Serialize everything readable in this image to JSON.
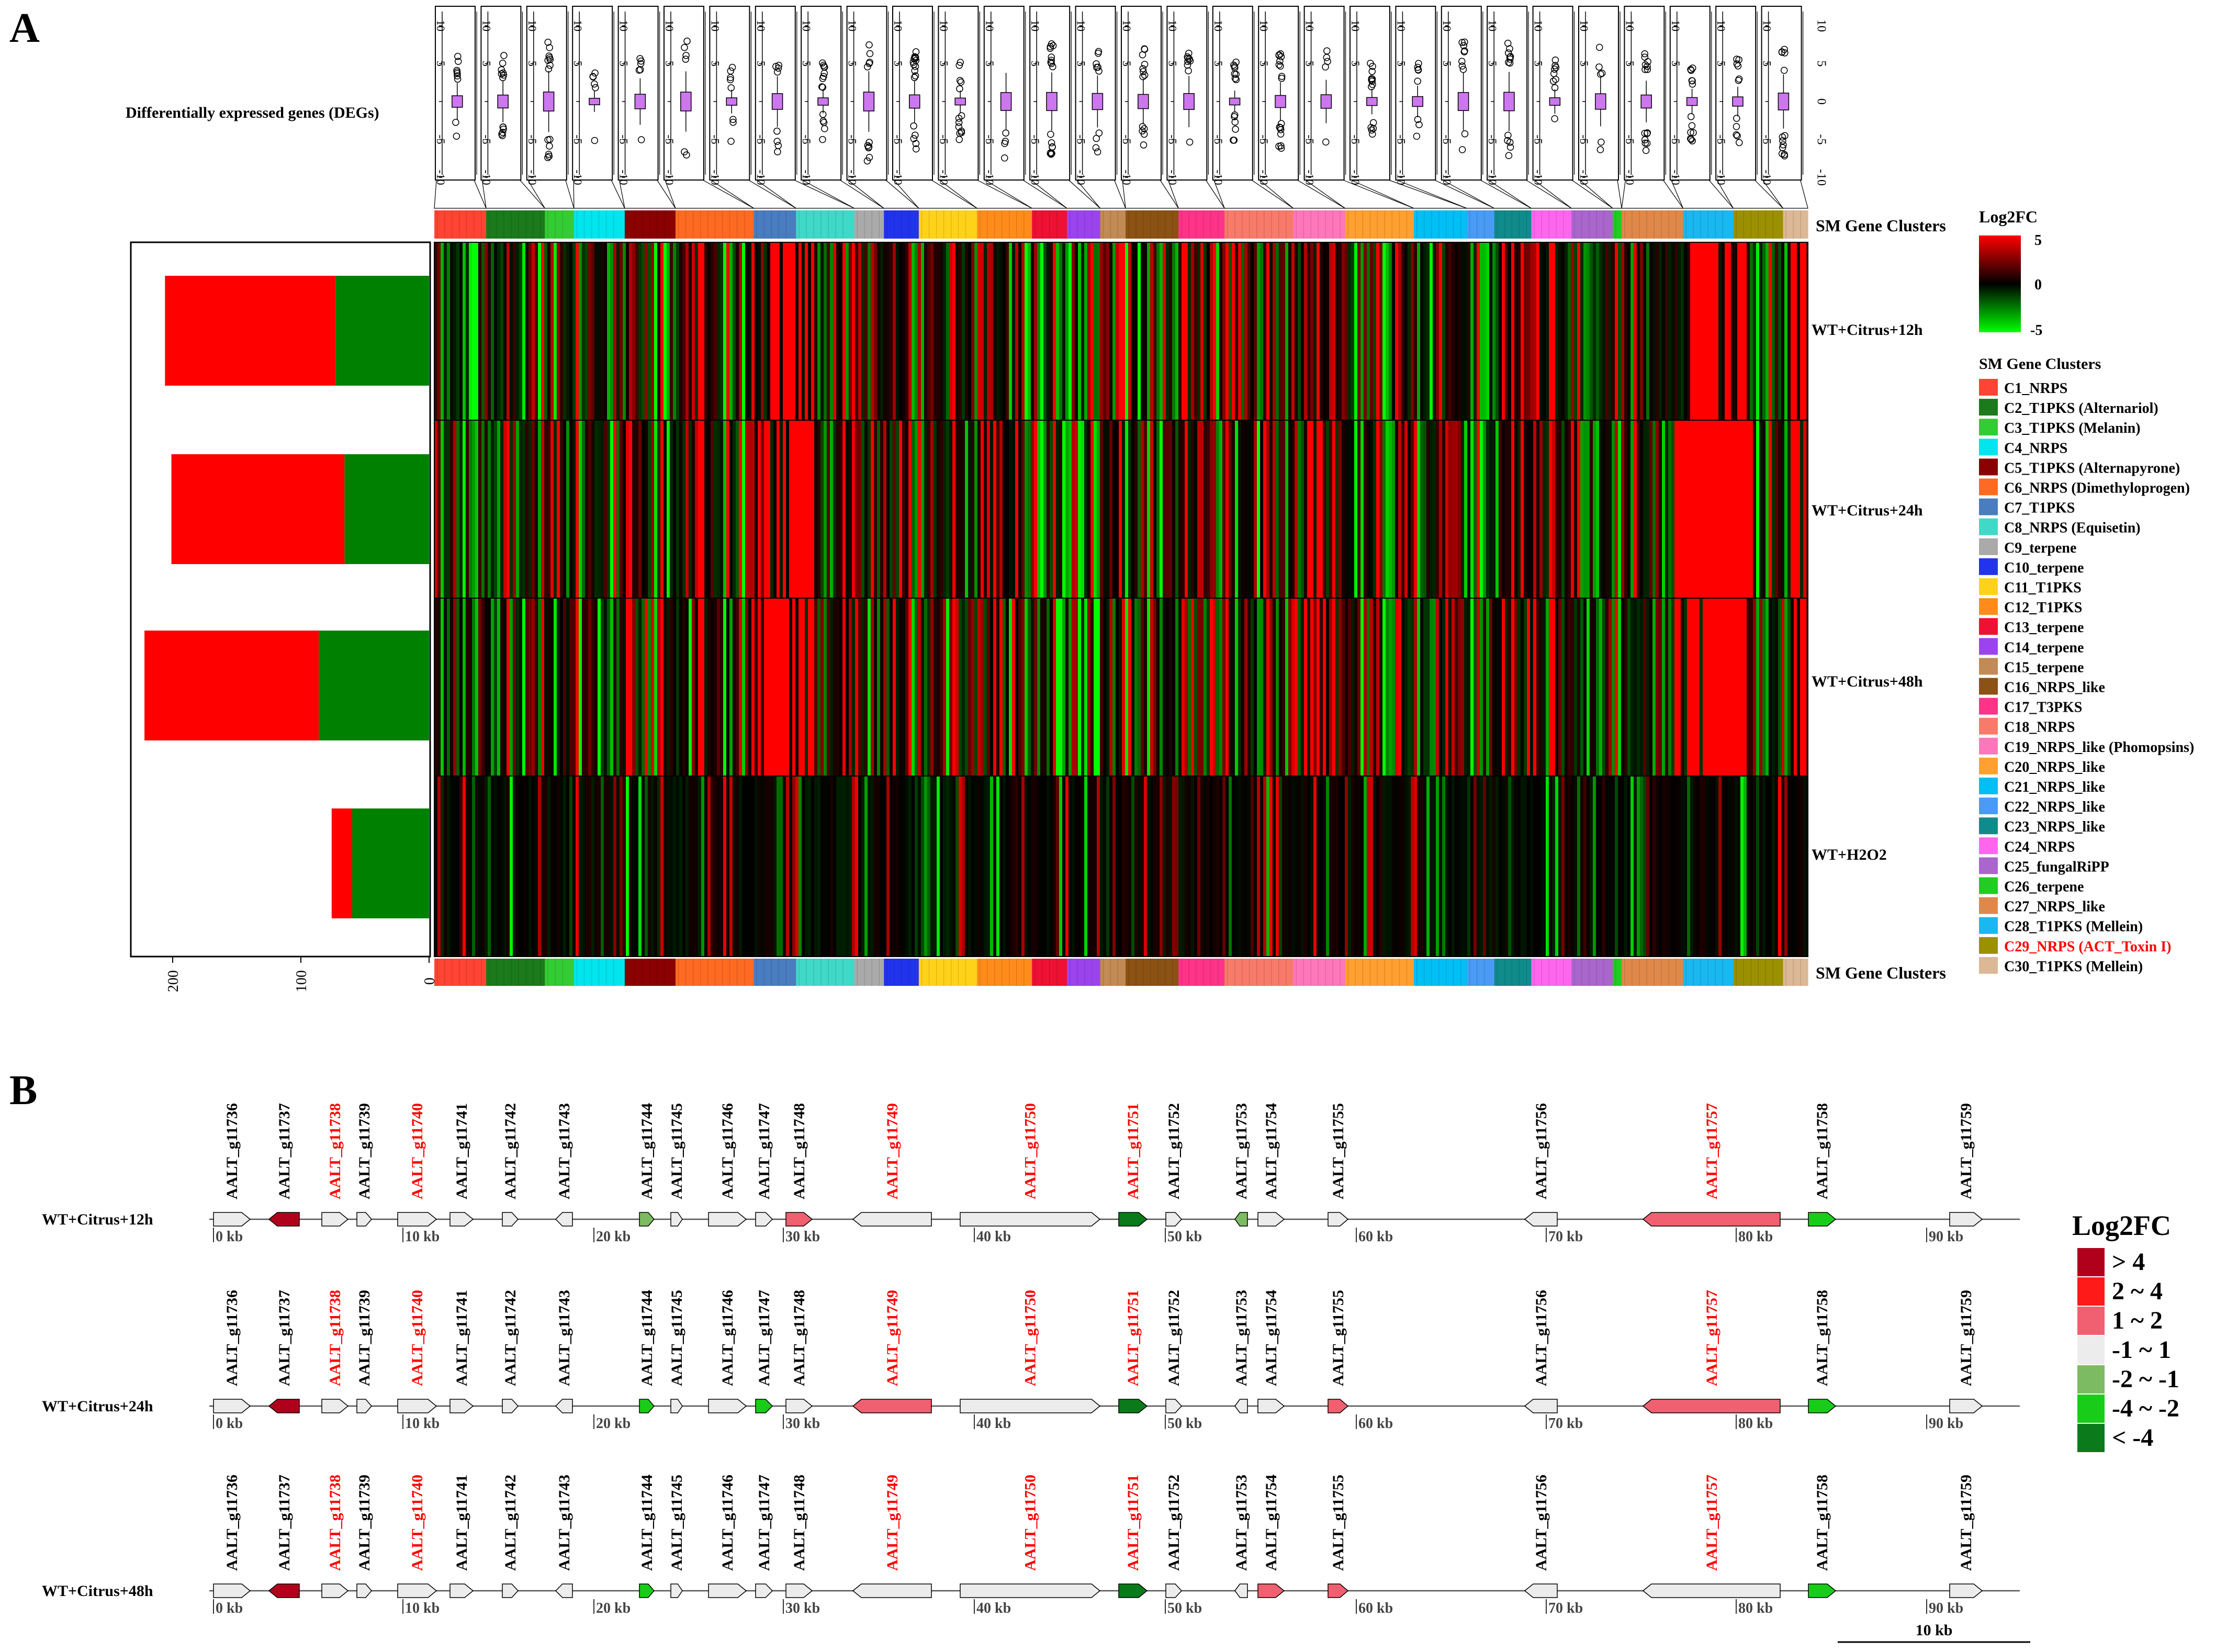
{
  "panelA": {
    "letter": "A",
    "deg_label": "Differentially expressed genes (DEGs)",
    "sm_label": "SM Gene Clusters",
    "legend_title": "Log2FC",
    "scale_ticks": [
      "5",
      "0",
      "-5"
    ],
    "legend_sm_title": "SM Gene Clusters",
    "boxplot_ticks": [
      "10",
      "5",
      "0",
      "-5",
      "-10"
    ],
    "bar_axis_ticks": [
      "200",
      "100",
      "0"
    ],
    "colors": {
      "up": "#ff0000",
      "down": "#008000",
      "black": "#000000"
    },
    "conditions": [
      {
        "label": "WT+Citrus+12h",
        "up": 133,
        "down": 73
      },
      {
        "label": "WT+Citrus+24h",
        "up": 135,
        "down": 66
      },
      {
        "label": "WT+Citrus+48h",
        "up": 136,
        "down": 86
      },
      {
        "label": "WT+H2O2",
        "up": 16,
        "down": 60
      }
    ],
    "clusters": [
      {
        "name": "C1_NRPS",
        "color": "#ff4433",
        "highlight": false
      },
      {
        "name": "C2_T1PKS (Alternariol)",
        "color": "#1b7a1b",
        "highlight": false
      },
      {
        "name": "C3_T1PKS (Melanin)",
        "color": "#33cc33",
        "highlight": false
      },
      {
        "name": "C4_NRPS",
        "color": "#00e5ee",
        "highlight": false
      },
      {
        "name": "C5_T1PKS (Alternapyrone)",
        "color": "#8b0000",
        "highlight": false
      },
      {
        "name": "C6_NRPS (Dimethyloprogen)",
        "color": "#ff6a22",
        "highlight": false
      },
      {
        "name": "C7_T1PKS",
        "color": "#4a7cc0",
        "highlight": false
      },
      {
        "name": "C8_NRPS (Equisetin)",
        "color": "#40d9c8",
        "highlight": false
      },
      {
        "name": "C9_terpene",
        "color": "#aaaaaa",
        "highlight": false
      },
      {
        "name": "C10_terpene",
        "color": "#2233ee",
        "highlight": false
      },
      {
        "name": "C11_T1PKS",
        "color": "#ffd21a",
        "highlight": false
      },
      {
        "name": "C12_T1PKS",
        "color": "#ff8c1a",
        "highlight": false
      },
      {
        "name": "C13_terpene",
        "color": "#ee1133",
        "highlight": false
      },
      {
        "name": "C14_terpene",
        "color": "#9b44ee",
        "highlight": false
      },
      {
        "name": "C15_terpene",
        "color": "#c28a55",
        "highlight": false
      },
      {
        "name": "C16_NRPS_like",
        "color": "#8b5213",
        "highlight": false
      },
      {
        "name": "C17_T3PKS",
        "color": "#ff3388",
        "highlight": false
      },
      {
        "name": "C18_NRPS",
        "color": "#f87a6a",
        "highlight": false
      },
      {
        "name": "C19_NRPS_like (Phomopsins)",
        "color": "#ff77bb",
        "highlight": false
      },
      {
        "name": "C20_NRPS_like",
        "color": "#ffa030",
        "highlight": false
      },
      {
        "name": "C21_NRPS_like",
        "color": "#00bff5",
        "highlight": false
      },
      {
        "name": "C22_NRPS_like",
        "color": "#4a9bf5",
        "highlight": false
      },
      {
        "name": "C23_NRPS_like",
        "color": "#108b8b",
        "highlight": false
      },
      {
        "name": "C24_NRPS",
        "color": "#ff66ee",
        "highlight": false
      },
      {
        "name": "C25_fungalRiPP",
        "color": "#aa66cc",
        "highlight": false
      },
      {
        "name": "C26_terpene",
        "color": "#22cc22",
        "highlight": false
      },
      {
        "name": "C27_NRPS_like",
        "color": "#e0884a",
        "highlight": false
      },
      {
        "name": "C28_T1PKS (Mellein)",
        "color": "#1ab8f0",
        "highlight": false
      },
      {
        "name": "C29_NRPS (ACT_Toxin I)",
        "color": "#9b9000",
        "highlight": true
      },
      {
        "name": "C30_T1PKS (Mellein)",
        "color": "#dcb896",
        "highlight": false
      }
    ]
  },
  "panelB": {
    "letter": "B",
    "legend_title": "Log2FC",
    "scale_label": "10 kb",
    "kb_ticks": [
      "0 kb",
      "10 kb",
      "20 kb",
      "30 kb",
      "40 kb",
      "50 kb",
      "60 kb",
      "70 kb",
      "80 kb",
      "90 kb"
    ],
    "legend": [
      {
        "label": "> 4",
        "color": "#b0001c"
      },
      {
        "label": "2 ~ 4",
        "color": "#ff1a1a"
      },
      {
        "label": "1 ~ 2",
        "color": "#f06070"
      },
      {
        "label": "-1 ~ 1",
        "color": "#ececec"
      },
      {
        "label": "-2 ~ -1",
        "color": "#7dbb63"
      },
      {
        "label": "-4 ~ -2",
        "color": "#19cc19"
      },
      {
        "label": "< -4",
        "color": "#0a7a1a"
      }
    ],
    "genes": [
      {
        "id": "AALT_g11736",
        "red": false
      },
      {
        "id": "AALT_g11737",
        "red": false
      },
      {
        "id": "AALT_g11738",
        "red": true
      },
      {
        "id": "AALT_g11739",
        "red": false
      },
      {
        "id": "AALT_g11740",
        "red": true
      },
      {
        "id": "AALT_g11741",
        "red": false
      },
      {
        "id": "AALT_g11742",
        "red": false
      },
      {
        "id": "AALT_g11743",
        "red": false
      },
      {
        "id": "AALT_g11744",
        "red": false
      },
      {
        "id": "AALT_g11745",
        "red": false
      },
      {
        "id": "AALT_g11746",
        "red": false
      },
      {
        "id": "AALT_g11747",
        "red": false
      },
      {
        "id": "AALT_g11748",
        "red": false
      },
      {
        "id": "AALT_g11749",
        "red": true
      },
      {
        "id": "AALT_g11750",
        "red": true
      },
      {
        "id": "AALT_g11751",
        "red": true
      },
      {
        "id": "AALT_g11752",
        "red": false
      },
      {
        "id": "AALT_g11753",
        "red": false
      },
      {
        "id": "AALT_g11754",
        "red": false
      },
      {
        "id": "AALT_g11755",
        "red": false
      },
      {
        "id": "AALT_g11756",
        "red": false
      },
      {
        "id": "AALT_g11757",
        "red": true
      },
      {
        "id": "AALT_g11758",
        "red": false
      },
      {
        "id": "AALT_g11759",
        "red": false
      }
    ],
    "tracks": [
      {
        "label": "WT+Citrus+12h",
        "classes": [
          3,
          0,
          3,
          3,
          3,
          3,
          3,
          3,
          4,
          3,
          3,
          3,
          2,
          3,
          3,
          6,
          3,
          4,
          3,
          3,
          3,
          2,
          5,
          3
        ]
      },
      {
        "label": "WT+Citrus+24h",
        "classes": [
          3,
          0,
          3,
          3,
          3,
          3,
          3,
          3,
          5,
          3,
          3,
          5,
          3,
          2,
          3,
          6,
          3,
          3,
          3,
          2,
          3,
          2,
          5,
          3
        ]
      },
      {
        "label": "WT+Citrus+48h",
        "classes": [
          3,
          0,
          3,
          3,
          3,
          3,
          3,
          3,
          5,
          3,
          3,
          3,
          3,
          3,
          3,
          6,
          3,
          3,
          2,
          2,
          3,
          3,
          5,
          3
        ]
      }
    ]
  }
}
